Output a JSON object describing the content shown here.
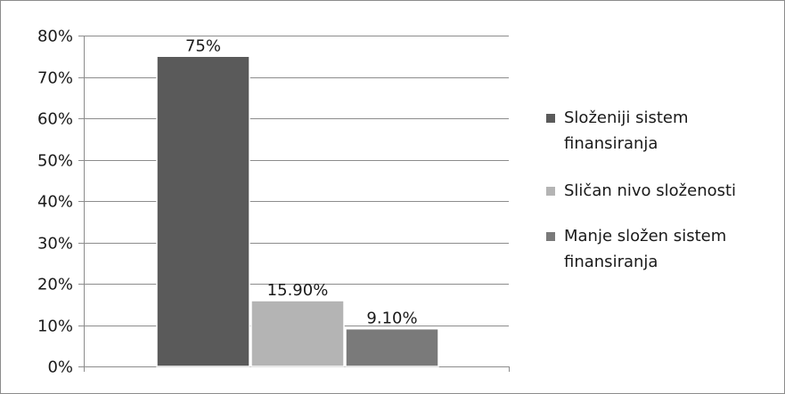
{
  "chart_data": {
    "type": "bar",
    "categories": [
      ""
    ],
    "series": [
      {
        "name": "Složeniji sistem finansiranja",
        "values": [
          75
        ],
        "label": "75%",
        "color": "#5a5a5a"
      },
      {
        "name": "Sličan nivo složenosti",
        "values": [
          15.9
        ],
        "label": "15.90%",
        "color": "#b4b4b4"
      },
      {
        "name": "Manje složen sistem finansiranja",
        "values": [
          9.1
        ],
        "label": "9.10%",
        "color": "#7a7a7a"
      }
    ],
    "ylim": [
      0,
      80
    ],
    "yticks": [
      "0%",
      "10%",
      "20%",
      "30%",
      "40%",
      "50%",
      "60%",
      "70%",
      "80%"
    ],
    "grid": true,
    "legend_position": "right",
    "title": "",
    "xlabel": "",
    "ylabel": ""
  },
  "legend": {
    "items": [
      {
        "line1": "Složeniji sistem",
        "line2": "finansiranja"
      },
      {
        "line1": "Sličan nivo složenosti",
        "line2": ""
      },
      {
        "line1": "Manje složen sistem",
        "line2": "finansiranja"
      }
    ]
  }
}
